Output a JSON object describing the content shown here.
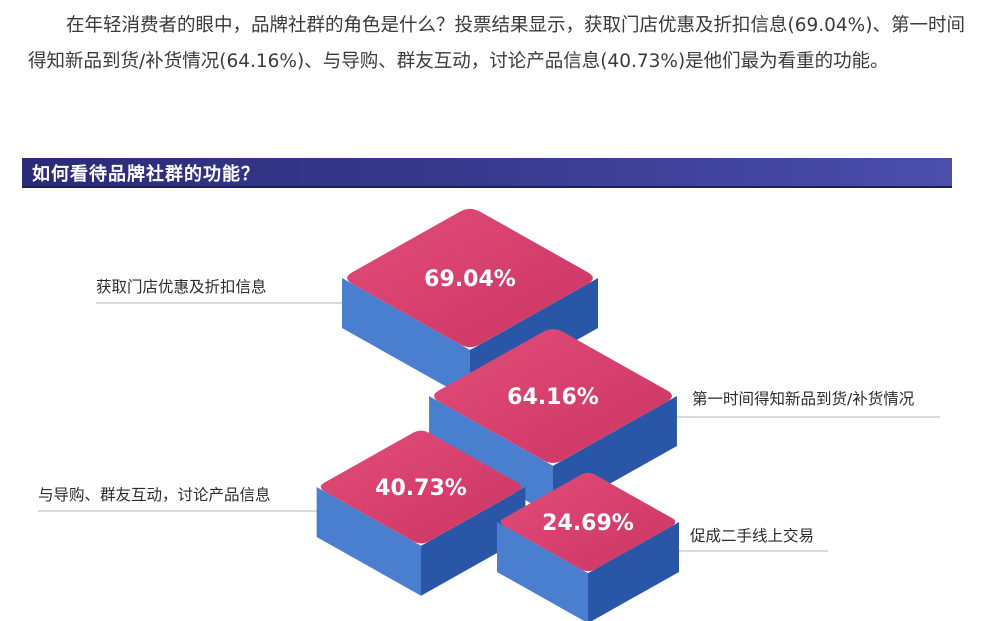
{
  "intro_text": "在年轻消费者的眼中，品牌社群的角色是什么？投票结果显示，获取门店优惠及折扣信息(69.04%)、第一时间得知新品到货/补货情况(64.16%)、与导购、群友互动，讨论产品信息(40.73%)是他们最为看重的功能。",
  "section_title": "如何看待品牌社群的功能？",
  "colors": {
    "top_face": "#d63d6a",
    "top_face_highlight": "#e24c79",
    "side_light": "#4a7fd0",
    "side_dark": "#2a56a8",
    "header_bg": "#2f3186",
    "leader_line": "#b5b5b5"
  },
  "chart_data": {
    "type": "bar",
    "title": "如何看待品牌社群的功能？",
    "categories": [
      "获取门店优惠及折扣信息",
      "第一时间得知新品到货/补货情况",
      "与导购、群友互动，讨论产品信息",
      "促成二手线上交易"
    ],
    "values": [
      69.04,
      64.16,
      40.73,
      24.69
    ],
    "value_labels": [
      "69.04%",
      "64.16%",
      "40.73%",
      "24.69%"
    ],
    "unit": "%"
  }
}
